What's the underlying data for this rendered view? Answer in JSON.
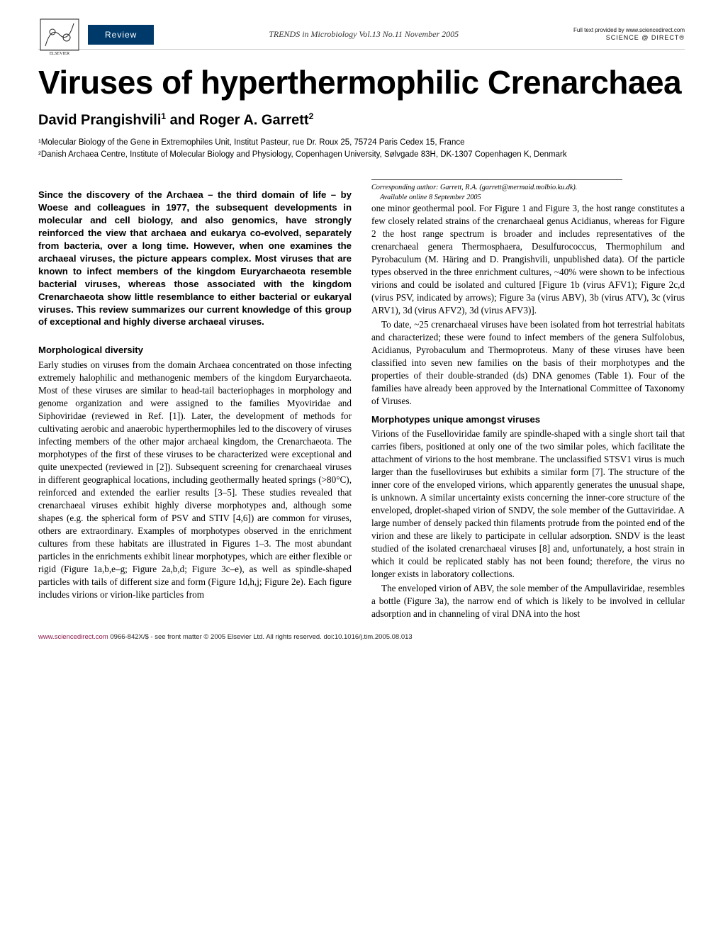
{
  "header": {
    "review_label": "Review",
    "journal_line": "TRENDS in Microbiology   Vol.13 No.11 November 2005",
    "fulltext_line": "Full text provided by www.sciencedirect.com",
    "sd_logo": "SCIENCE @ DIRECT®"
  },
  "title": "Viruses of hyperthermophilic Crenarchaea",
  "authors_html": "David Prangishvili<sup>1</sup> and Roger A. Garrett<sup>2</sup>",
  "affiliations": {
    "a1": "¹Molecular Biology of the Gene in Extremophiles Unit, Institut Pasteur, rue Dr. Roux 25, 75724 Paris Cedex 15, France",
    "a2": "²Danish Archaea Centre, Institute of Molecular Biology and Physiology, Copenhagen University, Sølvgade 83H, DK-1307 Copenhagen K, Denmark"
  },
  "abstract": "Since the discovery of the Archaea – the third domain of life – by Woese and colleagues in 1977, the subsequent developments in molecular and cell biology, and also genomics, have strongly reinforced the view that archaea and eukarya co-evolved, separately from bacteria, over a long time. However, when one examines the archaeal viruses, the picture appears complex. Most viruses that are known to infect members of the kingdom Euryarchaeota resemble bacterial viruses, whereas those associated with the kingdom Crenarchaeota show little resemblance to either bacterial or eukaryal viruses. This review summarizes our current knowledge of this group of exceptional and highly diverse archaeal viruses.",
  "sections": {
    "morpho_heading": "Morphological diversity",
    "morpho_p1": "Early studies on viruses from the domain Archaea concentrated on those infecting extremely halophilic and methanogenic members of the kingdom Euryarchaeota. Most of these viruses are similar to head-tail bacteriophages in morphology and genome organization and were assigned to the families Myoviridae and Siphoviridae (reviewed in Ref. [1]). Later, the development of methods for cultivating aerobic and anaerobic hyperthermophiles led to the discovery of viruses infecting members of the other major archaeal kingdom, the Crenarchaeota. The morphotypes of the first of these viruses to be characterized were exceptional and quite unexpected (reviewed in [2]). Subsequent screening for crenarchaeal viruses in different geographical locations, including geothermally heated springs (>80°C), reinforced and extended the earlier results [3–5]. These studies revealed that crenarchaeal viruses exhibit highly diverse morphotypes and, although some shapes (e.g. the spherical form of PSV and STIV [4,6]) are common for viruses, others are extraordinary. Examples of morphotypes observed in the enrichment cultures from these habitats are illustrated in Figures 1–3. The most abundant particles in the enrichments exhibit linear morphotypes, which are either flexible or rigid (Figure 1a,b,e–g; Figure 2a,b,d; Figure 3c–e), as well as spindle-shaped particles with tails of different size and form (Figure 1d,h,j; Figure 2e). Each figure includes virions or virion-like particles from",
    "col2_p1": "one minor geothermal pool. For Figure 1 and Figure 3, the host range constitutes a few closely related strains of the crenarchaeal genus Acidianus, whereas for Figure 2 the host range spectrum is broader and includes representatives of the crenarchaeal genera Thermosphaera, Desulfurococcus, Thermophilum and Pyrobaculum (M. Häring and D. Prangishvili, unpublished data). Of the particle types observed in the three enrichment cultures, ~40% were shown to be infectious virions and could be isolated and cultured [Figure 1b (virus AFV1); Figure 2c,d (virus PSV, indicated by arrows); Figure 3a (virus ABV), 3b (virus ATV), 3c (virus ARV1), 3d (virus AFV2), 3d (virus AFV3)].",
    "col2_p2": "To date, ~25 crenarchaeal viruses have been isolated from hot terrestrial habitats and characterized; these were found to infect members of the genera Sulfolobus, Acidianus, Pyrobaculum and Thermoproteus. Many of these viruses have been classified into seven new families on the basis of their morphotypes and the properties of their double-stranded (ds) DNA genomes (Table 1). Four of the families have already been approved by the International Committee of Taxonomy of Viruses.",
    "unique_heading": "Morphotypes unique amongst viruses",
    "unique_p1": "Virions of the Fuselloviridae family are spindle-shaped with a single short tail that carries fibers, positioned at only one of the two similar poles, which facilitate the attachment of virions to the host membrane. The unclassified STSV1 virus is much larger than the fuselloviruses but exhibits a similar form [7]. The structure of the inner core of the enveloped virions, which apparently generates the unusual shape, is unknown. A similar uncertainty exists concerning the inner-core structure of the enveloped, droplet-shaped virion of SNDV, the sole member of the Guttaviridae. A large number of densely packed thin filaments protrude from the pointed end of the virion and these are likely to participate in cellular adsorption. SNDV is the least studied of the isolated crenarchaeal viruses [8] and, unfortunately, a host strain in which it could be replicated stably has not been found; therefore, the virus no longer exists in laboratory collections.",
    "unique_p2": "The enveloped virion of ABV, the sole member of the Ampullaviridae, resembles a bottle (Figure 3a), the narrow end of which is likely to be involved in cellular adsorption and in channeling of viral DNA into the host"
  },
  "corresponding": {
    "line1": "Corresponding author: Garrett, R.A. (garrett@mermaid.molbio.ku.dk).",
    "line2": "Available online 8 September 2005"
  },
  "footer": {
    "url": "www.sciencedirect.com",
    "rights": "   0966-842X/$ - see front matter © 2005 Elsevier Ltd. All rights reserved. doi:10.1016/j.tim.2005.08.013"
  },
  "colors": {
    "review_bg": "#003a6b",
    "link": "#8a1a4a",
    "text": "#000000",
    "rule": "#cccccc"
  }
}
